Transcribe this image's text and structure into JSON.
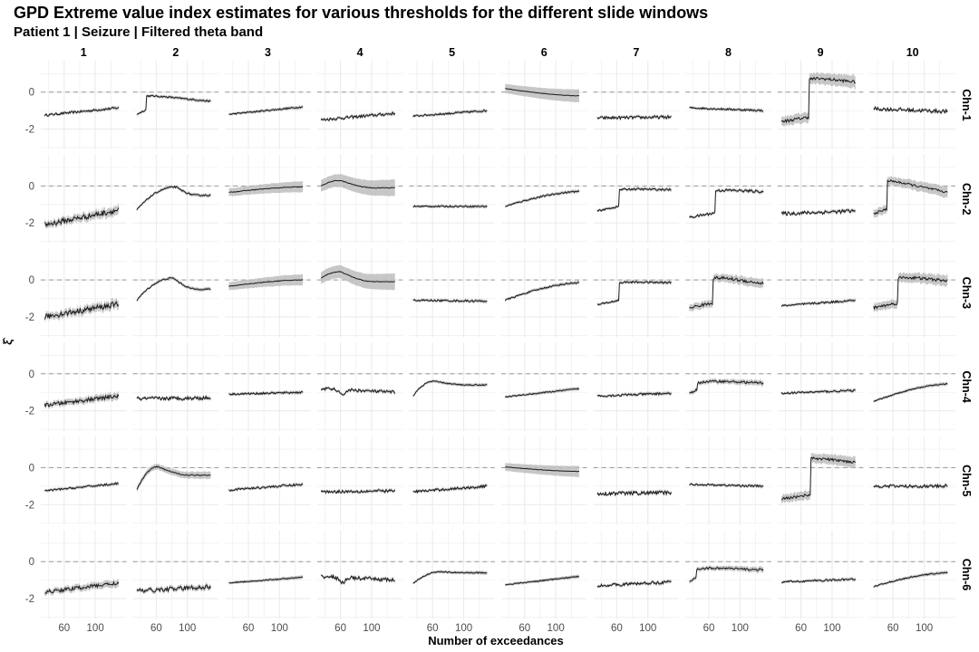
{
  "chart_data": {
    "type": "line",
    "title": "GPD Extreme value index estimates for various thresholds for the different slide windows",
    "subtitle": "Patient 1 | Seizure | Filtered theta band",
    "xlabel": "Number of exceedances",
    "ylabel": "ξ̂",
    "x_range": [
      30,
      140
    ],
    "x_ticks": [
      "60",
      "100"
    ],
    "x_tick_values": [
      60,
      100
    ],
    "y_range": [
      -3.1,
      1.7
    ],
    "y_ticks": [
      "0",
      "-2"
    ],
    "y_tick_values": [
      0,
      -2
    ],
    "reference_line": 0,
    "columns": [
      "1",
      "2",
      "3",
      "4",
      "5",
      "6",
      "7",
      "8",
      "9",
      "10"
    ],
    "rows": [
      "Chn-1",
      "Chn-2",
      "Chn-3",
      "Chn-4",
      "Chn-5",
      "Chn-6"
    ],
    "colors": {
      "line": "#1a1a1a",
      "band": "#bdbdbd",
      "reference": "#9a9a9a",
      "grid": "#ebebeb"
    },
    "note_panels": "each panel: ξ̂ vs number of exceedances with grey confidence band",
    "panels": [
      [
        {
          "shape": "flat",
          "start": -1.25,
          "end": -0.85,
          "noise": 0.06
        },
        {
          "shape": "jump",
          "start": -1.2,
          "jump_x": 47,
          "plateau": -0.2,
          "peak": -0.15,
          "end": -0.5,
          "noise": 0.04
        },
        {
          "shape": "flat",
          "start": -1.2,
          "end": -0.8,
          "noise": 0.04
        },
        {
          "shape": "flat",
          "start": -1.5,
          "end": -1.15,
          "noise": 0.08
        },
        {
          "shape": "flat",
          "start": -1.3,
          "end": -1.0,
          "noise": 0.05
        },
        {
          "shape": "smooth",
          "start": 0.2,
          "end": -0.2,
          "noise": 0.01,
          "band": 0.35
        },
        {
          "shape": "flat",
          "start": -1.4,
          "end": -1.35,
          "noise": 0.08
        },
        {
          "shape": "flat",
          "start": -0.85,
          "end": -1.0,
          "noise": 0.05
        },
        {
          "shape": "jump",
          "start": -1.6,
          "jump_x": 70,
          "plateau": 0.7,
          "peak": 0.8,
          "end": 0.55,
          "noise": 0.08,
          "band": 0.35
        },
        {
          "shape": "flat",
          "start": -0.9,
          "end": -1.05,
          "noise": 0.1
        }
      ],
      [
        {
          "shape": "flat",
          "start": -2.1,
          "end": -1.3,
          "noise": 0.15,
          "band": 0.25
        },
        {
          "shape": "hump",
          "start": -1.3,
          "peak_x": 85,
          "peak": -0.05,
          "end": -0.5,
          "noise": 0.04
        },
        {
          "shape": "smooth",
          "start": -0.35,
          "end": -0.05,
          "noise": 0.02,
          "band": 0.3
        },
        {
          "shape": "hump",
          "start": 0.0,
          "peak_x": 60,
          "peak": 0.3,
          "end": -0.1,
          "noise": 0.02,
          "band": 0.45
        },
        {
          "shape": "flat",
          "start": -1.1,
          "end": -1.1,
          "noise": 0.04
        },
        {
          "shape": "smooth",
          "start": -1.1,
          "end": -0.3,
          "noise": 0.04
        },
        {
          "shape": "jump",
          "start": -1.35,
          "jump_x": 63,
          "plateau": -0.2,
          "peak": -0.15,
          "end": -0.2,
          "noise": 0.05
        },
        {
          "shape": "jump",
          "start": -1.7,
          "jump_x": 68,
          "plateau": -0.25,
          "peak": -0.2,
          "end": -0.3,
          "noise": 0.07
        },
        {
          "shape": "flat",
          "start": -1.5,
          "end": -1.35,
          "noise": 0.1
        },
        {
          "shape": "jump",
          "start": -1.5,
          "jump_x": 52,
          "plateau": 0.3,
          "peak": 0.35,
          "end": -0.35,
          "noise": 0.06,
          "band": 0.3
        }
      ],
      [
        {
          "shape": "flat",
          "start": -2.0,
          "end": -1.3,
          "noise": 0.15,
          "band": 0.25
        },
        {
          "shape": "hump",
          "start": -1.1,
          "peak_x": 82,
          "peak": 0.1,
          "end": -0.5,
          "noise": 0.04
        },
        {
          "shape": "smooth",
          "start": -0.35,
          "end": 0.0,
          "noise": 0.02,
          "band": 0.3
        },
        {
          "shape": "hump",
          "start": 0.1,
          "peak_x": 60,
          "peak": 0.45,
          "end": -0.1,
          "noise": 0.02,
          "band": 0.45
        },
        {
          "shape": "flat",
          "start": -1.1,
          "end": -1.15,
          "noise": 0.05
        },
        {
          "shape": "smooth",
          "start": -1.1,
          "end": -0.15,
          "noise": 0.04
        },
        {
          "shape": "jump",
          "start": -1.35,
          "jump_x": 63,
          "plateau": -0.15,
          "peak": -0.1,
          "end": -0.15,
          "noise": 0.05
        },
        {
          "shape": "jump",
          "start": -1.5,
          "jump_x": 65,
          "plateau": 0.1,
          "peak": 0.2,
          "end": -0.2,
          "noise": 0.08,
          "band": 0.25
        },
        {
          "shape": "flat",
          "start": -1.4,
          "end": -1.1,
          "noise": 0.05
        },
        {
          "shape": "jump",
          "start": -1.5,
          "jump_x": 66,
          "plateau": 0.1,
          "peak": 0.2,
          "end": -0.05,
          "noise": 0.08,
          "band": 0.3
        }
      ],
      [
        {
          "shape": "flat",
          "start": -1.7,
          "end": -1.2,
          "noise": 0.1,
          "band": 0.2
        },
        {
          "shape": "flat",
          "start": -1.35,
          "end": -1.3,
          "noise": 0.1
        },
        {
          "shape": "flat",
          "start": -1.1,
          "end": -1.0,
          "noise": 0.05
        },
        {
          "shape": "dip",
          "start": -0.8,
          "end": -1.0,
          "noise": 0.08
        },
        {
          "shape": "hump",
          "start": -1.2,
          "peak_x": 62,
          "peak": -0.4,
          "end": -0.6,
          "noise": 0.03
        },
        {
          "shape": "flat",
          "start": -1.25,
          "end": -0.8,
          "noise": 0.03
        },
        {
          "shape": "flat",
          "start": -1.2,
          "end": -1.05,
          "noise": 0.06
        },
        {
          "shape": "jump",
          "start": -1.1,
          "jump_x": 45,
          "plateau": -0.5,
          "peak": -0.35,
          "end": -0.5,
          "noise": 0.06,
          "band": 0.15
        },
        {
          "shape": "flat",
          "start": -1.05,
          "end": -0.9,
          "noise": 0.05
        },
        {
          "shape": "smooth",
          "start": -1.5,
          "end": -0.55,
          "noise": 0.03
        }
      ],
      [
        {
          "shape": "flat",
          "start": -1.25,
          "end": -0.85,
          "noise": 0.05
        },
        {
          "shape": "hump",
          "start": -1.2,
          "peak_x": 62,
          "peak": 0.05,
          "end": -0.4,
          "noise": 0.03,
          "band": 0.2
        },
        {
          "shape": "flat",
          "start": -1.2,
          "end": -0.9,
          "noise": 0.06
        },
        {
          "shape": "flat",
          "start": -1.3,
          "end": -1.25,
          "noise": 0.08
        },
        {
          "shape": "flat",
          "start": -1.3,
          "end": -1.0,
          "noise": 0.07
        },
        {
          "shape": "smooth",
          "start": 0.05,
          "end": -0.2,
          "noise": 0.01,
          "band": 0.3
        },
        {
          "shape": "flat",
          "start": -1.4,
          "end": -1.35,
          "noise": 0.1
        },
        {
          "shape": "flat",
          "start": -0.9,
          "end": -1.0,
          "noise": 0.05
        },
        {
          "shape": "jump",
          "start": -1.7,
          "jump_x": 72,
          "plateau": 0.5,
          "peak": 0.55,
          "end": 0.3,
          "noise": 0.07,
          "band": 0.3
        },
        {
          "shape": "flat",
          "start": -1.0,
          "end": -1.0,
          "noise": 0.08
        }
      ],
      [
        {
          "shape": "flat",
          "start": -1.65,
          "end": -1.15,
          "noise": 0.1,
          "band": 0.2
        },
        {
          "shape": "flat",
          "start": -1.6,
          "end": -1.35,
          "noise": 0.12,
          "band": 0.15
        },
        {
          "shape": "flat",
          "start": -1.15,
          "end": -0.85,
          "noise": 0.03
        },
        {
          "shape": "dip",
          "start": -0.8,
          "end": -1.0,
          "noise": 0.1
        },
        {
          "shape": "hump",
          "start": -1.2,
          "peak_x": 70,
          "peak": -0.55,
          "end": -0.6,
          "noise": 0.03
        },
        {
          "shape": "flat",
          "start": -1.25,
          "end": -0.8,
          "noise": 0.03
        },
        {
          "shape": "flat",
          "start": -1.3,
          "end": -1.1,
          "noise": 0.08
        },
        {
          "shape": "jump",
          "start": -1.1,
          "jump_x": 44,
          "plateau": -0.4,
          "peak": -0.3,
          "end": -0.45,
          "noise": 0.06,
          "band": 0.15
        },
        {
          "shape": "flat",
          "start": -1.1,
          "end": -0.95,
          "noise": 0.05
        },
        {
          "shape": "smooth",
          "start": -1.35,
          "end": -0.6,
          "noise": 0.03
        }
      ]
    ]
  }
}
